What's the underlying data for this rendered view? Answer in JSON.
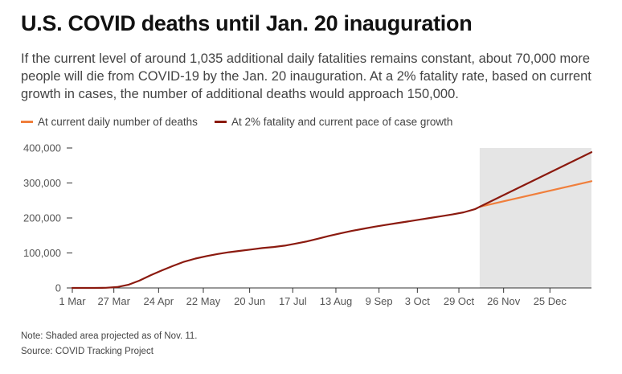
{
  "title": "U.S. COVID deaths until Jan. 20 inauguration",
  "subtitle": "If the current level of around 1,035 additional daily fatalities remains constant, about 70,000 more people will die from COVID-19 by the Jan. 20 inauguration. At a 2% fatality rate, based on current growth in cases, the number of additional deaths would approach 150,000.",
  "note": "Note: Shaded area projected as of Nov. 11.",
  "source": "Source: COVID Tracking Project",
  "colors": {
    "historical": "#8b1a0f",
    "current_daily": "#f07f3c",
    "two_percent": "#8b1a0f",
    "projection_shade": "#e5e5e5",
    "axis": "#333333",
    "tick_text": "#555555"
  },
  "chart_data": {
    "type": "line",
    "title": "U.S. COVID deaths until Jan. 20 inauguration",
    "x_axis": {
      "type": "date",
      "range": [
        "2020-03-01",
        "2021-01-20"
      ],
      "ticks": [
        {
          "date": "2020-03-01",
          "label": "1 Mar"
        },
        {
          "date": "2020-03-27",
          "label": "27 Mar"
        },
        {
          "date": "2020-04-24",
          "label": "24 Apr"
        },
        {
          "date": "2020-05-22",
          "label": "22 May"
        },
        {
          "date": "2020-06-20",
          "label": "20 Jun"
        },
        {
          "date": "2020-07-17",
          "label": "17 Jul"
        },
        {
          "date": "2020-08-13",
          "label": "13 Aug"
        },
        {
          "date": "2020-09-09",
          "label": "9 Sep"
        },
        {
          "date": "2020-10-03",
          "label": "3 Oct"
        },
        {
          "date": "2020-10-29",
          "label": "29 Oct"
        },
        {
          "date": "2020-11-26",
          "label": "26 Nov"
        },
        {
          "date": "2020-12-25",
          "label": "25 Dec"
        }
      ]
    },
    "y_axis": {
      "range": [
        0,
        400000
      ],
      "ticks": [
        {
          "value": 0,
          "label": "0"
        },
        {
          "value": 100000,
          "label": "100,000"
        },
        {
          "value": 200000,
          "label": "200,000"
        },
        {
          "value": 300000,
          "label": "300,000"
        },
        {
          "value": 400000,
          "label": "400,000"
        }
      ]
    },
    "projection_start": "2020-11-11",
    "legend_placement": "top",
    "series": [
      {
        "key": "historical",
        "points": [
          {
            "x": "2020-03-01",
            "y": 0
          },
          {
            "x": "2020-03-15",
            "y": 100
          },
          {
            "x": "2020-03-22",
            "y": 500
          },
          {
            "x": "2020-03-29",
            "y": 2500
          },
          {
            "x": "2020-04-05",
            "y": 9000
          },
          {
            "x": "2020-04-12",
            "y": 21000
          },
          {
            "x": "2020-04-19",
            "y": 36000
          },
          {
            "x": "2020-04-26",
            "y": 50000
          },
          {
            "x": "2020-05-03",
            "y": 63000
          },
          {
            "x": "2020-05-10",
            "y": 75000
          },
          {
            "x": "2020-05-17",
            "y": 84000
          },
          {
            "x": "2020-05-24",
            "y": 91000
          },
          {
            "x": "2020-05-31",
            "y": 97000
          },
          {
            "x": "2020-06-07",
            "y": 102000
          },
          {
            "x": "2020-06-14",
            "y": 106000
          },
          {
            "x": "2020-06-21",
            "y": 110000
          },
          {
            "x": "2020-06-28",
            "y": 114000
          },
          {
            "x": "2020-07-05",
            "y": 117000
          },
          {
            "x": "2020-07-12",
            "y": 121000
          },
          {
            "x": "2020-07-19",
            "y": 127000
          },
          {
            "x": "2020-07-26",
            "y": 133000
          },
          {
            "x": "2020-08-02",
            "y": 141000
          },
          {
            "x": "2020-08-09",
            "y": 149000
          },
          {
            "x": "2020-08-16",
            "y": 156000
          },
          {
            "x": "2020-08-23",
            "y": 163000
          },
          {
            "x": "2020-08-30",
            "y": 169000
          },
          {
            "x": "2020-09-06",
            "y": 175000
          },
          {
            "x": "2020-09-13",
            "y": 180000
          },
          {
            "x": "2020-09-20",
            "y": 185000
          },
          {
            "x": "2020-09-27",
            "y": 190000
          },
          {
            "x": "2020-10-04",
            "y": 195000
          },
          {
            "x": "2020-10-11",
            "y": 200000
          },
          {
            "x": "2020-10-18",
            "y": 205000
          },
          {
            "x": "2020-10-25",
            "y": 210000
          },
          {
            "x": "2020-11-01",
            "y": 216000
          },
          {
            "x": "2020-11-08",
            "y": 225000
          },
          {
            "x": "2020-11-11",
            "y": 232000
          }
        ]
      },
      {
        "key": "current_daily",
        "name": "At current daily number of deaths",
        "points": [
          {
            "x": "2020-11-11",
            "y": 232000
          },
          {
            "x": "2021-01-20",
            "y": 305000
          }
        ]
      },
      {
        "key": "two_percent",
        "name": "At 2% fatality and current pace of case growth",
        "points": [
          {
            "x": "2020-11-11",
            "y": 232000
          },
          {
            "x": "2021-01-20",
            "y": 388000
          }
        ]
      }
    ]
  }
}
